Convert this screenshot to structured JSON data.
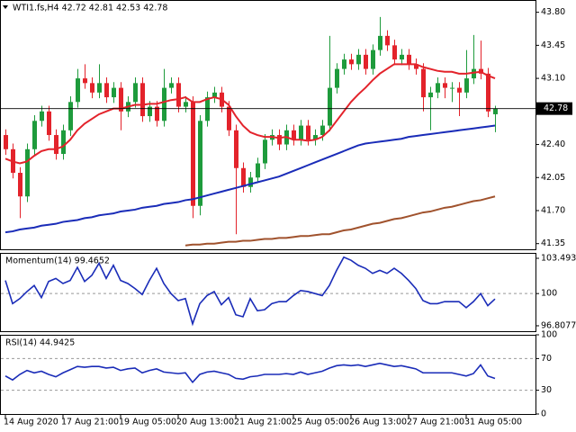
{
  "chart_data": [
    {
      "type": "candlestick",
      "title": "WTI1.fs,H4 42.72 42.81 42.53 42.78",
      "categories": [
        "14 Aug 2020",
        null,
        null,
        null,
        null,
        null,
        null,
        null,
        "17 Aug 21:00",
        null,
        null,
        null,
        null,
        null,
        null,
        null,
        "19 Aug 05:00",
        null,
        null,
        null,
        null,
        null,
        null,
        null,
        "20 Aug 13:00",
        null,
        null,
        null,
        null,
        null,
        null,
        null,
        "21 Aug 21:00",
        null,
        null,
        null,
        null,
        null,
        null,
        null,
        "25 Aug 05:00",
        null,
        null,
        null,
        null,
        null,
        null,
        null,
        "26 Aug 13:00",
        null,
        null,
        null,
        null,
        null,
        null,
        null,
        "27 Aug 21:00",
        null,
        null,
        null,
        null,
        null,
        null,
        null,
        "31 Aug 05:00",
        null,
        null,
        null,
        null
      ],
      "open": [
        42.5,
        42.35,
        42.1,
        41.85,
        42.35,
        42.65,
        42.75,
        42.5,
        42.3,
        42.55,
        42.85,
        43.1,
        43.05,
        42.95,
        43.05,
        42.9,
        43.0,
        42.75,
        42.85,
        43.05,
        42.7,
        42.8,
        42.65,
        43.0,
        43.05,
        42.8,
        42.85,
        41.75,
        42.65,
        42.9,
        42.95,
        42.8,
        42.55,
        42.15,
        41.95,
        42.05,
        42.2,
        42.45,
        42.5,
        42.4,
        42.55,
        42.45,
        42.6,
        42.45,
        42.5,
        42.6,
        43.0,
        43.2,
        43.3,
        43.25,
        43.35,
        43.2,
        43.4,
        43.55,
        43.45,
        43.3,
        43.35,
        43.25,
        43.2,
        42.9,
        42.95,
        43.05,
        43.0,
        43.0,
        42.95,
        43.1,
        43.2,
        43.15,
        42.72
      ],
      "high": [
        42.56,
        42.41,
        42.16,
        42.41,
        42.71,
        42.81,
        42.81,
        42.56,
        42.61,
        42.91,
        43.2,
        43.25,
        43.11,
        43.25,
        43.11,
        43.06,
        43.06,
        42.91,
        43.11,
        43.11,
        42.86,
        42.86,
        43.2,
        43.11,
        43.11,
        42.91,
        42.91,
        42.71,
        42.96,
        43.01,
        43.01,
        42.86,
        42.61,
        42.21,
        42.11,
        42.26,
        42.51,
        42.56,
        42.56,
        42.61,
        42.61,
        42.66,
        42.66,
        42.56,
        42.66,
        43.55,
        43.26,
        43.36,
        43.36,
        43.41,
        43.41,
        43.46,
        43.75,
        43.61,
        43.51,
        43.41,
        43.41,
        43.31,
        43.26,
        43.01,
        43.11,
        43.11,
        43.06,
        43.06,
        43.4,
        43.56,
        43.5,
        43.21,
        42.81
      ],
      "low": [
        42.29,
        42.04,
        41.62,
        41.79,
        42.29,
        42.59,
        42.44,
        42.24,
        42.24,
        42.49,
        42.79,
        42.99,
        42.89,
        42.89,
        42.84,
        42.84,
        42.55,
        42.69,
        42.79,
        42.64,
        42.64,
        42.59,
        42.59,
        42.94,
        42.74,
        42.74,
        41.62,
        41.65,
        42.59,
        42.84,
        42.74,
        42.49,
        41.45,
        41.89,
        41.89,
        41.99,
        42.14,
        42.39,
        42.34,
        42.34,
        42.39,
        42.39,
        42.39,
        42.39,
        42.44,
        42.54,
        42.94,
        43.14,
        43.19,
        43.19,
        43.14,
        43.14,
        43.34,
        43.39,
        43.24,
        43.24,
        43.19,
        43.14,
        42.75,
        42.55,
        42.89,
        42.89,
        42.85,
        42.7,
        42.89,
        43.04,
        43.09,
        42.69,
        42.53
      ],
      "close": [
        42.35,
        42.1,
        41.85,
        42.35,
        42.65,
        42.75,
        42.5,
        42.3,
        42.55,
        42.85,
        43.1,
        43.05,
        42.95,
        43.05,
        42.9,
        43.0,
        42.75,
        42.85,
        43.05,
        42.7,
        42.8,
        42.65,
        43.0,
        43.05,
        42.8,
        42.85,
        41.75,
        42.65,
        42.9,
        42.95,
        42.8,
        42.55,
        42.15,
        41.95,
        42.05,
        42.2,
        42.45,
        42.5,
        42.4,
        42.55,
        42.45,
        42.6,
        42.45,
        42.5,
        42.6,
        43.0,
        43.2,
        43.3,
        43.25,
        43.35,
        43.2,
        43.4,
        43.55,
        43.45,
        43.3,
        43.35,
        43.25,
        43.2,
        42.9,
        42.95,
        43.05,
        43.0,
        43.0,
        42.95,
        43.1,
        43.2,
        43.15,
        42.75,
        42.78
      ],
      "up_color": "#1e9b3c",
      "down_color": "#e3232b",
      "lines": [
        {
          "color": "#e3232b",
          "values": [
            42.25,
            42.22,
            42.2,
            42.22,
            42.28,
            42.33,
            42.35,
            42.35,
            42.38,
            42.45,
            42.55,
            42.62,
            42.67,
            42.72,
            42.75,
            42.78,
            42.78,
            42.8,
            42.82,
            42.82,
            42.83,
            42.83,
            42.85,
            42.87,
            42.88,
            42.9,
            42.85,
            42.85,
            42.88,
            42.9,
            42.88,
            42.82,
            42.7,
            42.6,
            42.53,
            42.5,
            42.48,
            42.48,
            42.47,
            42.48,
            42.45,
            42.45,
            42.44,
            42.45,
            42.48,
            42.55,
            42.65,
            42.75,
            42.85,
            42.93,
            43.0,
            43.08,
            43.15,
            43.2,
            43.25,
            43.25,
            43.25,
            43.25,
            43.22,
            43.2,
            43.18,
            43.17,
            43.17,
            43.15,
            43.15,
            43.16,
            43.17,
            43.13,
            43.1
          ]
        },
        {
          "color": "#1a2cb8",
          "values": [
            41.47,
            41.48,
            41.5,
            41.51,
            41.52,
            41.54,
            41.55,
            41.56,
            41.58,
            41.59,
            41.6,
            41.62,
            41.63,
            41.65,
            41.66,
            41.67,
            41.69,
            41.7,
            41.71,
            41.73,
            41.74,
            41.75,
            41.77,
            41.78,
            41.79,
            41.81,
            41.82,
            41.84,
            41.86,
            41.88,
            41.9,
            41.92,
            41.94,
            41.96,
            41.98,
            42.0,
            42.02,
            42.04,
            42.06,
            42.09,
            42.12,
            42.15,
            42.18,
            42.21,
            42.24,
            42.27,
            42.3,
            42.33,
            42.36,
            42.39,
            42.41,
            42.42,
            42.43,
            42.44,
            42.45,
            42.46,
            42.48,
            42.49,
            42.5,
            42.51,
            42.52,
            42.53,
            42.54,
            42.55,
            42.56,
            42.57,
            42.58,
            42.59,
            42.6
          ]
        },
        {
          "color": "#a0522d",
          "values": [
            null,
            null,
            null,
            null,
            null,
            null,
            null,
            null,
            null,
            null,
            null,
            null,
            null,
            null,
            null,
            null,
            null,
            null,
            null,
            null,
            null,
            null,
            null,
            null,
            null,
            41.33,
            41.34,
            41.34,
            41.35,
            41.35,
            41.36,
            41.37,
            41.37,
            41.38,
            41.38,
            41.39,
            41.4,
            41.4,
            41.41,
            41.41,
            41.42,
            41.43,
            41.43,
            41.44,
            41.45,
            41.45,
            41.47,
            41.49,
            41.5,
            41.52,
            41.54,
            41.56,
            41.57,
            41.59,
            41.61,
            41.62,
            41.64,
            41.66,
            41.68,
            41.69,
            41.71,
            41.73,
            41.74,
            41.76,
            41.78,
            41.8,
            41.81,
            41.83,
            41.85
          ]
        }
      ],
      "ylim": [
        41.29,
        43.93
      ],
      "yticks": [
        {
          "value": 43.8,
          "label": "43.80"
        },
        43.45,
        {
          "value": 43.1,
          "label": "43.10"
        },
        42.75,
        {
          "value": 42.4,
          "label": "42.40"
        },
        42.05,
        {
          "value": 41.7,
          "label": "41.70"
        },
        41.35
      ]
    },
    {
      "type": "line",
      "title": "Momentum(14) 99.4652",
      "color": "#1a2cb8",
      "values": [
        101.3,
        99.0,
        99.5,
        100.2,
        100.8,
        99.6,
        101.2,
        101.5,
        101.0,
        101.3,
        102.6,
        101.2,
        101.8,
        103.0,
        101.5,
        102.8,
        101.3,
        101.0,
        100.5,
        99.9,
        101.3,
        102.5,
        101.0,
        100.0,
        99.3,
        99.5,
        97.0,
        99.0,
        99.8,
        100.2,
        98.9,
        99.6,
        97.9,
        97.7,
        99.5,
        98.3,
        98.4,
        99.0,
        99.2,
        99.2,
        99.8,
        100.3,
        100.2,
        100.0,
        99.8,
        100.8,
        102.3,
        103.6,
        103.3,
        102.8,
        102.5,
        102.0,
        102.3,
        102.0,
        102.5,
        102.0,
        101.3,
        100.5,
        99.3,
        99.0,
        99.0,
        99.2,
        99.2,
        99.2,
        98.6,
        99.2,
        100.0,
        98.8,
        99.4652
      ],
      "ylim": [
        96.27,
        104.03
      ],
      "yticks": [
        103.4936,
        100,
        96.8077
      ]
    },
    {
      "type": "line",
      "title": "RSI(14) 44.9425",
      "color": "#1a2cb8",
      "values": [
        48,
        43,
        50,
        55,
        52,
        54,
        50,
        47,
        52,
        56,
        60,
        59,
        60,
        60,
        58,
        59,
        55,
        57,
        58,
        52,
        55,
        57,
        53,
        52,
        51,
        52,
        40,
        50,
        53,
        54,
        52,
        50,
        45,
        44,
        47,
        48,
        50,
        50,
        50,
        51,
        50,
        53,
        50,
        52,
        54,
        58,
        61,
        62,
        61,
        62,
        60,
        62,
        64,
        62,
        60,
        61,
        59,
        57,
        52,
        52,
        52,
        52,
        52,
        50,
        48,
        51,
        62,
        48,
        44.9425
      ],
      "ylim": [
        0,
        100
      ],
      "yticks": [
        100,
        70,
        30,
        0
      ]
    }
  ]
}
